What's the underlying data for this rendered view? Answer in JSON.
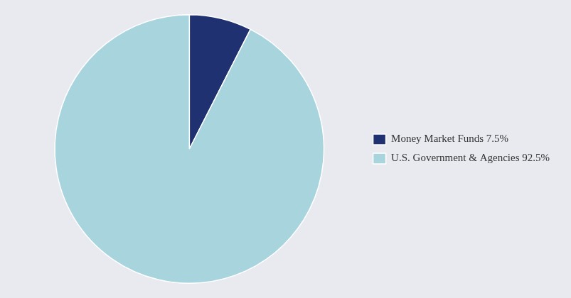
{
  "chart_data": {
    "type": "pie",
    "categories": [
      "Money Market Funds 7.5%",
      "U.S. Government & Agencies 92.5%"
    ],
    "values": [
      7.5,
      92.5
    ],
    "colors": [
      "#1f3170",
      "#a8d4de"
    ],
    "legend": "right"
  }
}
